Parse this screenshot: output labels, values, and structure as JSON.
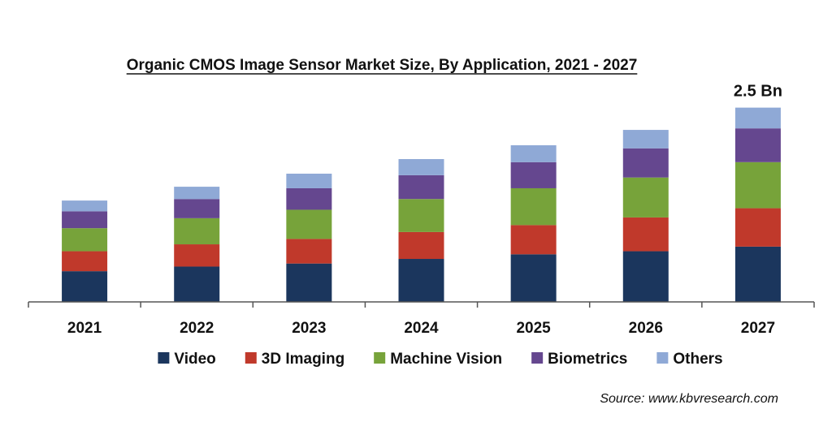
{
  "chart_data": {
    "type": "bar",
    "stacked": true,
    "title": "Organic CMOS Image Sensor Market Size, By Application, 2021 - 2027",
    "categories": [
      "2021",
      "2022",
      "2023",
      "2024",
      "2025",
      "2026",
      "2027"
    ],
    "series": [
      {
        "name": "Video",
        "color": "#1b365d",
        "values": [
          0.4,
          0.46,
          0.5,
          0.56,
          0.62,
          0.66,
          0.72
        ]
      },
      {
        "name": "3D Imaging",
        "color": "#c0392b",
        "values": [
          0.26,
          0.29,
          0.32,
          0.35,
          0.38,
          0.44,
          0.5
        ]
      },
      {
        "name": "Machine Vision",
        "color": "#77a33a",
        "values": [
          0.3,
          0.34,
          0.38,
          0.43,
          0.48,
          0.52,
          0.6
        ]
      },
      {
        "name": "Biometrics",
        "color": "#65478f",
        "values": [
          0.22,
          0.25,
          0.28,
          0.31,
          0.34,
          0.38,
          0.44
        ]
      },
      {
        "name": "Others",
        "color": "#8fa9d6",
        "values": [
          0.14,
          0.16,
          0.19,
          0.21,
          0.22,
          0.24,
          0.27
        ]
      }
    ],
    "data_labels": [
      {
        "category": "2027",
        "text": "2.5 Bn"
      }
    ],
    "ylim": [
      0,
      2.6
    ],
    "xlabel": "",
    "ylabel": "",
    "grid": false,
    "legend_position": "bottom",
    "source": "Source: www.kbvresearch.com"
  }
}
